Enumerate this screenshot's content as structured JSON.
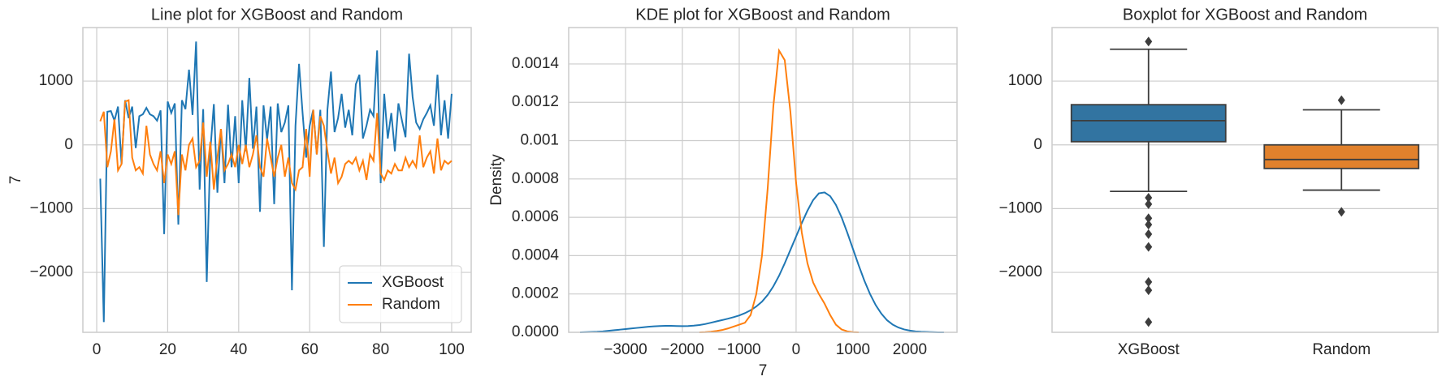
{
  "chart_data": [
    {
      "type": "line",
      "title": "Line plot for XGBoost and Random",
      "ylabel": "7",
      "x": [
        1,
        2,
        3,
        4,
        5,
        6,
        7,
        8,
        9,
        10,
        11,
        12,
        13,
        14,
        15,
        16,
        17,
        18,
        19,
        20,
        21,
        22,
        23,
        24,
        25,
        26,
        27,
        28,
        29,
        30,
        31,
        32,
        33,
        34,
        35,
        36,
        37,
        38,
        39,
        40,
        41,
        42,
        43,
        44,
        45,
        46,
        47,
        48,
        49,
        50,
        51,
        52,
        53,
        54,
        55,
        56,
        57,
        58,
        59,
        60,
        61,
        62,
        63,
        64,
        65,
        66,
        67,
        68,
        69,
        70,
        71,
        72,
        73,
        74,
        75,
        76,
        77,
        78,
        79,
        80,
        81,
        82,
        83,
        84,
        85,
        86,
        87,
        88,
        89,
        90,
        91,
        92,
        93,
        94,
        95,
        96,
        97,
        98,
        99,
        100
      ],
      "series": [
        {
          "name": "XGBoost",
          "color": "#1f77b4",
          "values": [
            -530,
            -2780,
            520,
            530,
            380,
            600,
            -300,
            700,
            420,
            600,
            -50,
            450,
            480,
            580,
            480,
            450,
            380,
            540,
            -1400,
            680,
            500,
            650,
            -1250,
            700,
            560,
            1180,
            470,
            1620,
            -700,
            560,
            -2150,
            -100,
            640,
            -750,
            250,
            -600,
            630,
            -350,
            450,
            -600,
            700,
            -100,
            1050,
            -60,
            600,
            -1050,
            620,
            80,
            600,
            -930,
            650,
            200,
            350,
            620,
            -2280,
            300,
            1270,
            500,
            -200,
            300,
            550,
            -150,
            550,
            -1600,
            550,
            1150,
            200,
            420,
            800,
            270,
            550,
            150,
            950,
            1100,
            100,
            300,
            550,
            450,
            1480,
            -600,
            800,
            100,
            500,
            -100,
            650,
            380,
            120,
            1430,
            750,
            350,
            250,
            400,
            500,
            620,
            300,
            1100,
            150,
            700,
            100,
            800
          ]
        },
        {
          "name": "Random",
          "color": "#ff7f0e",
          "values": [
            370,
            520,
            -350,
            -100,
            400,
            -400,
            -300,
            680,
            700,
            -200,
            -400,
            -350,
            -450,
            300,
            -150,
            -300,
            -400,
            -100,
            -600,
            -150,
            -300,
            -100,
            -1100,
            -150,
            -400,
            0,
            100,
            -350,
            -250,
            350,
            -500,
            50,
            -700,
            -200,
            250,
            -400,
            -300,
            -150,
            -350,
            0,
            -300,
            0,
            -350,
            -150,
            150,
            -350,
            -500,
            100,
            -200,
            -500,
            -200,
            0,
            -500,
            -200,
            -600,
            -700,
            -400,
            -350,
            250,
            -500,
            550,
            -150,
            450,
            300,
            -100,
            -450,
            -200,
            -600,
            -500,
            -300,
            -250,
            -300,
            -200,
            -400,
            -250,
            -550,
            -150,
            -250,
            500,
            -450,
            -550,
            -400,
            -450,
            -300,
            -400,
            -400,
            -200,
            -350,
            -250,
            -350,
            150,
            -350,
            -200,
            -100,
            -450,
            100,
            -400,
            -250,
            -300,
            -250
          ]
        }
      ],
      "xlim": [
        -3.9,
        105.5
      ],
      "xticks": [
        0,
        20,
        40,
        60,
        80,
        100
      ],
      "ylim": [
        -2940,
        1840
      ],
      "yticks": [
        {
          "value": -2000,
          "label": "−2000"
        },
        {
          "value": -1000,
          "label": "−1000"
        },
        0,
        1000
      ],
      "grid": "both",
      "legend": "lower right"
    },
    {
      "type": "kde",
      "title": "KDE plot for XGBoost and Random",
      "xlabel": "7",
      "ylabel": "Density",
      "x": [
        -3800,
        -3700,
        -3600,
        -3500,
        -3400,
        -3300,
        -3200,
        -3100,
        -3000,
        -2900,
        -2800,
        -2700,
        -2600,
        -2500,
        -2400,
        -2300,
        -2200,
        -2100,
        -2000,
        -1900,
        -1800,
        -1700,
        -1600,
        -1500,
        -1400,
        -1300,
        -1200,
        -1100,
        -1000,
        -900,
        -800,
        -700,
        -600,
        -500,
        -400,
        -300,
        -200,
        -100,
        0,
        100,
        200,
        300,
        400,
        500,
        600,
        700,
        800,
        900,
        1000,
        1100,
        1200,
        1300,
        1400,
        1500,
        1600,
        1700,
        1800,
        1900,
        2000,
        2100,
        2200,
        2300,
        2400,
        2500,
        2600
      ],
      "series": [
        {
          "name": "XGBoost",
          "color": "#1f77b4",
          "values": [
            0,
            1e-06,
            2e-06,
            3e-06,
            5e-06,
            8e-06,
            1.1e-05,
            1.4e-05,
            1.7e-05,
            2e-05,
            2.3e-05,
            2.6e-05,
            2.9e-05,
            3.1e-05,
            3.3e-05,
            3.4e-05,
            3.4e-05,
            3.3e-05,
            3.2e-05,
            3.3e-05,
            3.5e-05,
            3.8e-05,
            4.3e-05,
            5e-05,
            5.7e-05,
            6.4e-05,
            7.1e-05,
            7.9e-05,
            8.8e-05,
            0.0001,
            0.000115,
            0.000135,
            0.00016,
            0.000195,
            0.00024,
            0.000295,
            0.00036,
            0.00043,
            0.0005,
            0.00057,
            0.000635,
            0.00069,
            0.000725,
            0.00073,
            0.00071,
            0.000665,
            0.0006,
            0.00052,
            0.000435,
            0.00035,
            0.00027,
            0.0002,
            0.000142,
            9.7e-05,
            6.3e-05,
            4e-05,
            2.5e-05,
            1.5e-05,
            9e-06,
            5e-06,
            3e-06,
            2e-06,
            1e-06,
            0,
            0
          ]
        },
        {
          "name": "Random",
          "color": "#ff7f0e",
          "values": [
            null,
            null,
            null,
            null,
            null,
            null,
            null,
            null,
            null,
            null,
            null,
            null,
            null,
            null,
            null,
            null,
            null,
            null,
            null,
            null,
            null,
            0,
            1e-06,
            3e-06,
            7e-06,
            1.2e-05,
            2e-05,
            3e-05,
            4e-05,
            5e-05,
            9e-05,
            0.0002,
            0.0004,
            0.00075,
            0.00118,
            0.00147,
            0.00142,
            0.00115,
            0.00078,
            0.00052,
            0.00036,
            0.00026,
            0.0002,
            0.00015,
            9e-05,
            4e-05,
            1.5e-05,
            5e-06,
            1e-06,
            0,
            null,
            null,
            null,
            null,
            null,
            null,
            null,
            null,
            null,
            null,
            null,
            null,
            null,
            null,
            null
          ]
        }
      ],
      "xlim": [
        -4000,
        2830
      ],
      "xticks": [
        {
          "value": -3000,
          "label": "−3000"
        },
        {
          "value": -2000,
          "label": "−2000"
        },
        {
          "value": -1000,
          "label": "−1000"
        },
        0,
        1000,
        2000
      ],
      "ylim": [
        0,
        0.00159
      ],
      "yticks": [
        {
          "value": 0,
          "label": "0.0000"
        },
        0.0002,
        0.0004,
        0.0006,
        0.0008,
        0.001,
        0.0012,
        0.0014
      ],
      "grid": "both"
    },
    {
      "type": "box",
      "title": "Boxplot for XGBoost and Random",
      "categories": [
        "XGBoost",
        "Random"
      ],
      "boxes": [
        {
          "color": "#3274a1",
          "min": -730,
          "q1": 50,
          "median": 380,
          "q3": 630,
          "max": 1500,
          "fliers": [
            1620,
            -830,
            -930,
            -1150,
            -1250,
            -1400,
            -1600,
            -2150,
            -2280,
            -2780
          ]
        },
        {
          "color": "#e1812c",
          "min": -710,
          "q1": -370,
          "median": -230,
          "q3": 0,
          "max": 550,
          "fliers": [
            700,
            -1050
          ]
        }
      ],
      "ylim": [
        -2940,
        1840
      ],
      "yticks": [
        {
          "value": -2000,
          "label": "−2000"
        },
        {
          "value": -1000,
          "label": "−1000"
        },
        0,
        1000
      ],
      "grid": "y"
    }
  ]
}
